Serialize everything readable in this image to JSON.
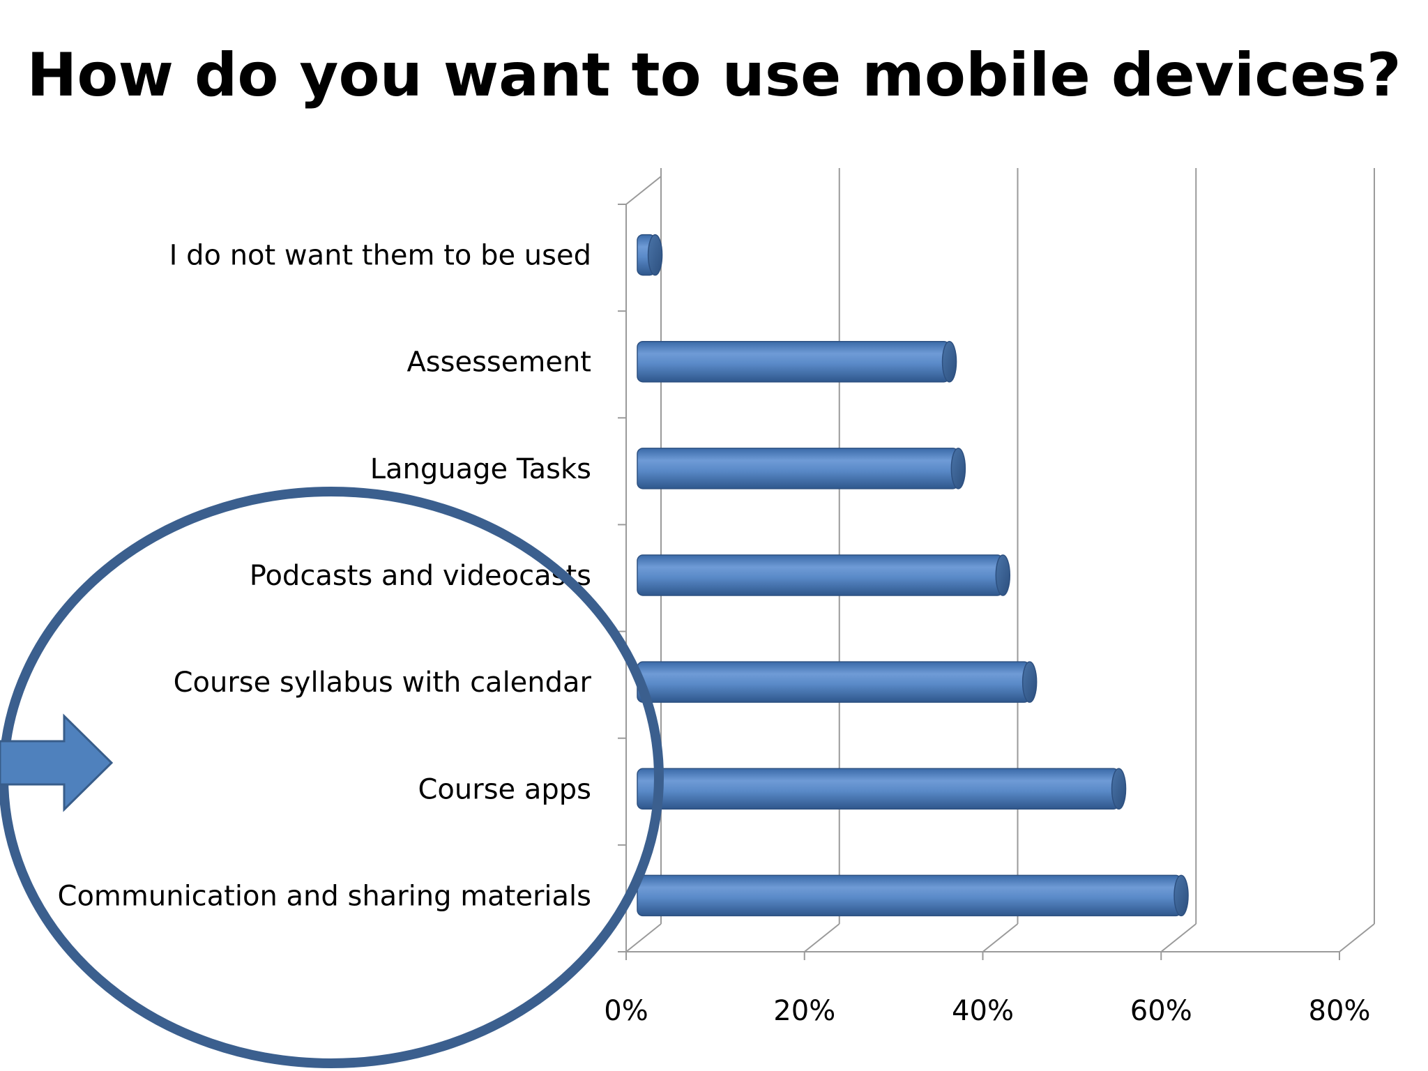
{
  "slide": {
    "title": "How do you want to use mobile devices?"
  },
  "chart_data": {
    "type": "bar",
    "orientation": "horizontal",
    "style": "3d-cylinder",
    "categories": [
      "I do not want them to be used",
      "Assessement",
      "Language Tasks",
      "Podcasts and videocasts",
      "Course syllabus with calendar",
      "Course apps",
      "Communication and sharing materials"
    ],
    "values": [
      0.02,
      0.35,
      0.36,
      0.41,
      0.44,
      0.54,
      0.61
    ],
    "xlim": [
      0,
      0.8
    ],
    "x_ticks": [
      "0%",
      "20%",
      "40%",
      "60%",
      "80%"
    ],
    "grid": true,
    "bar_color": "#4f81bd",
    "title": "",
    "xlabel": "",
    "ylabel": ""
  },
  "annotations": {
    "highlight_ellipse_color": "#3b5f8e",
    "arrow_color": "#4f81bd",
    "arrow_icon": "right-arrow-icon"
  }
}
